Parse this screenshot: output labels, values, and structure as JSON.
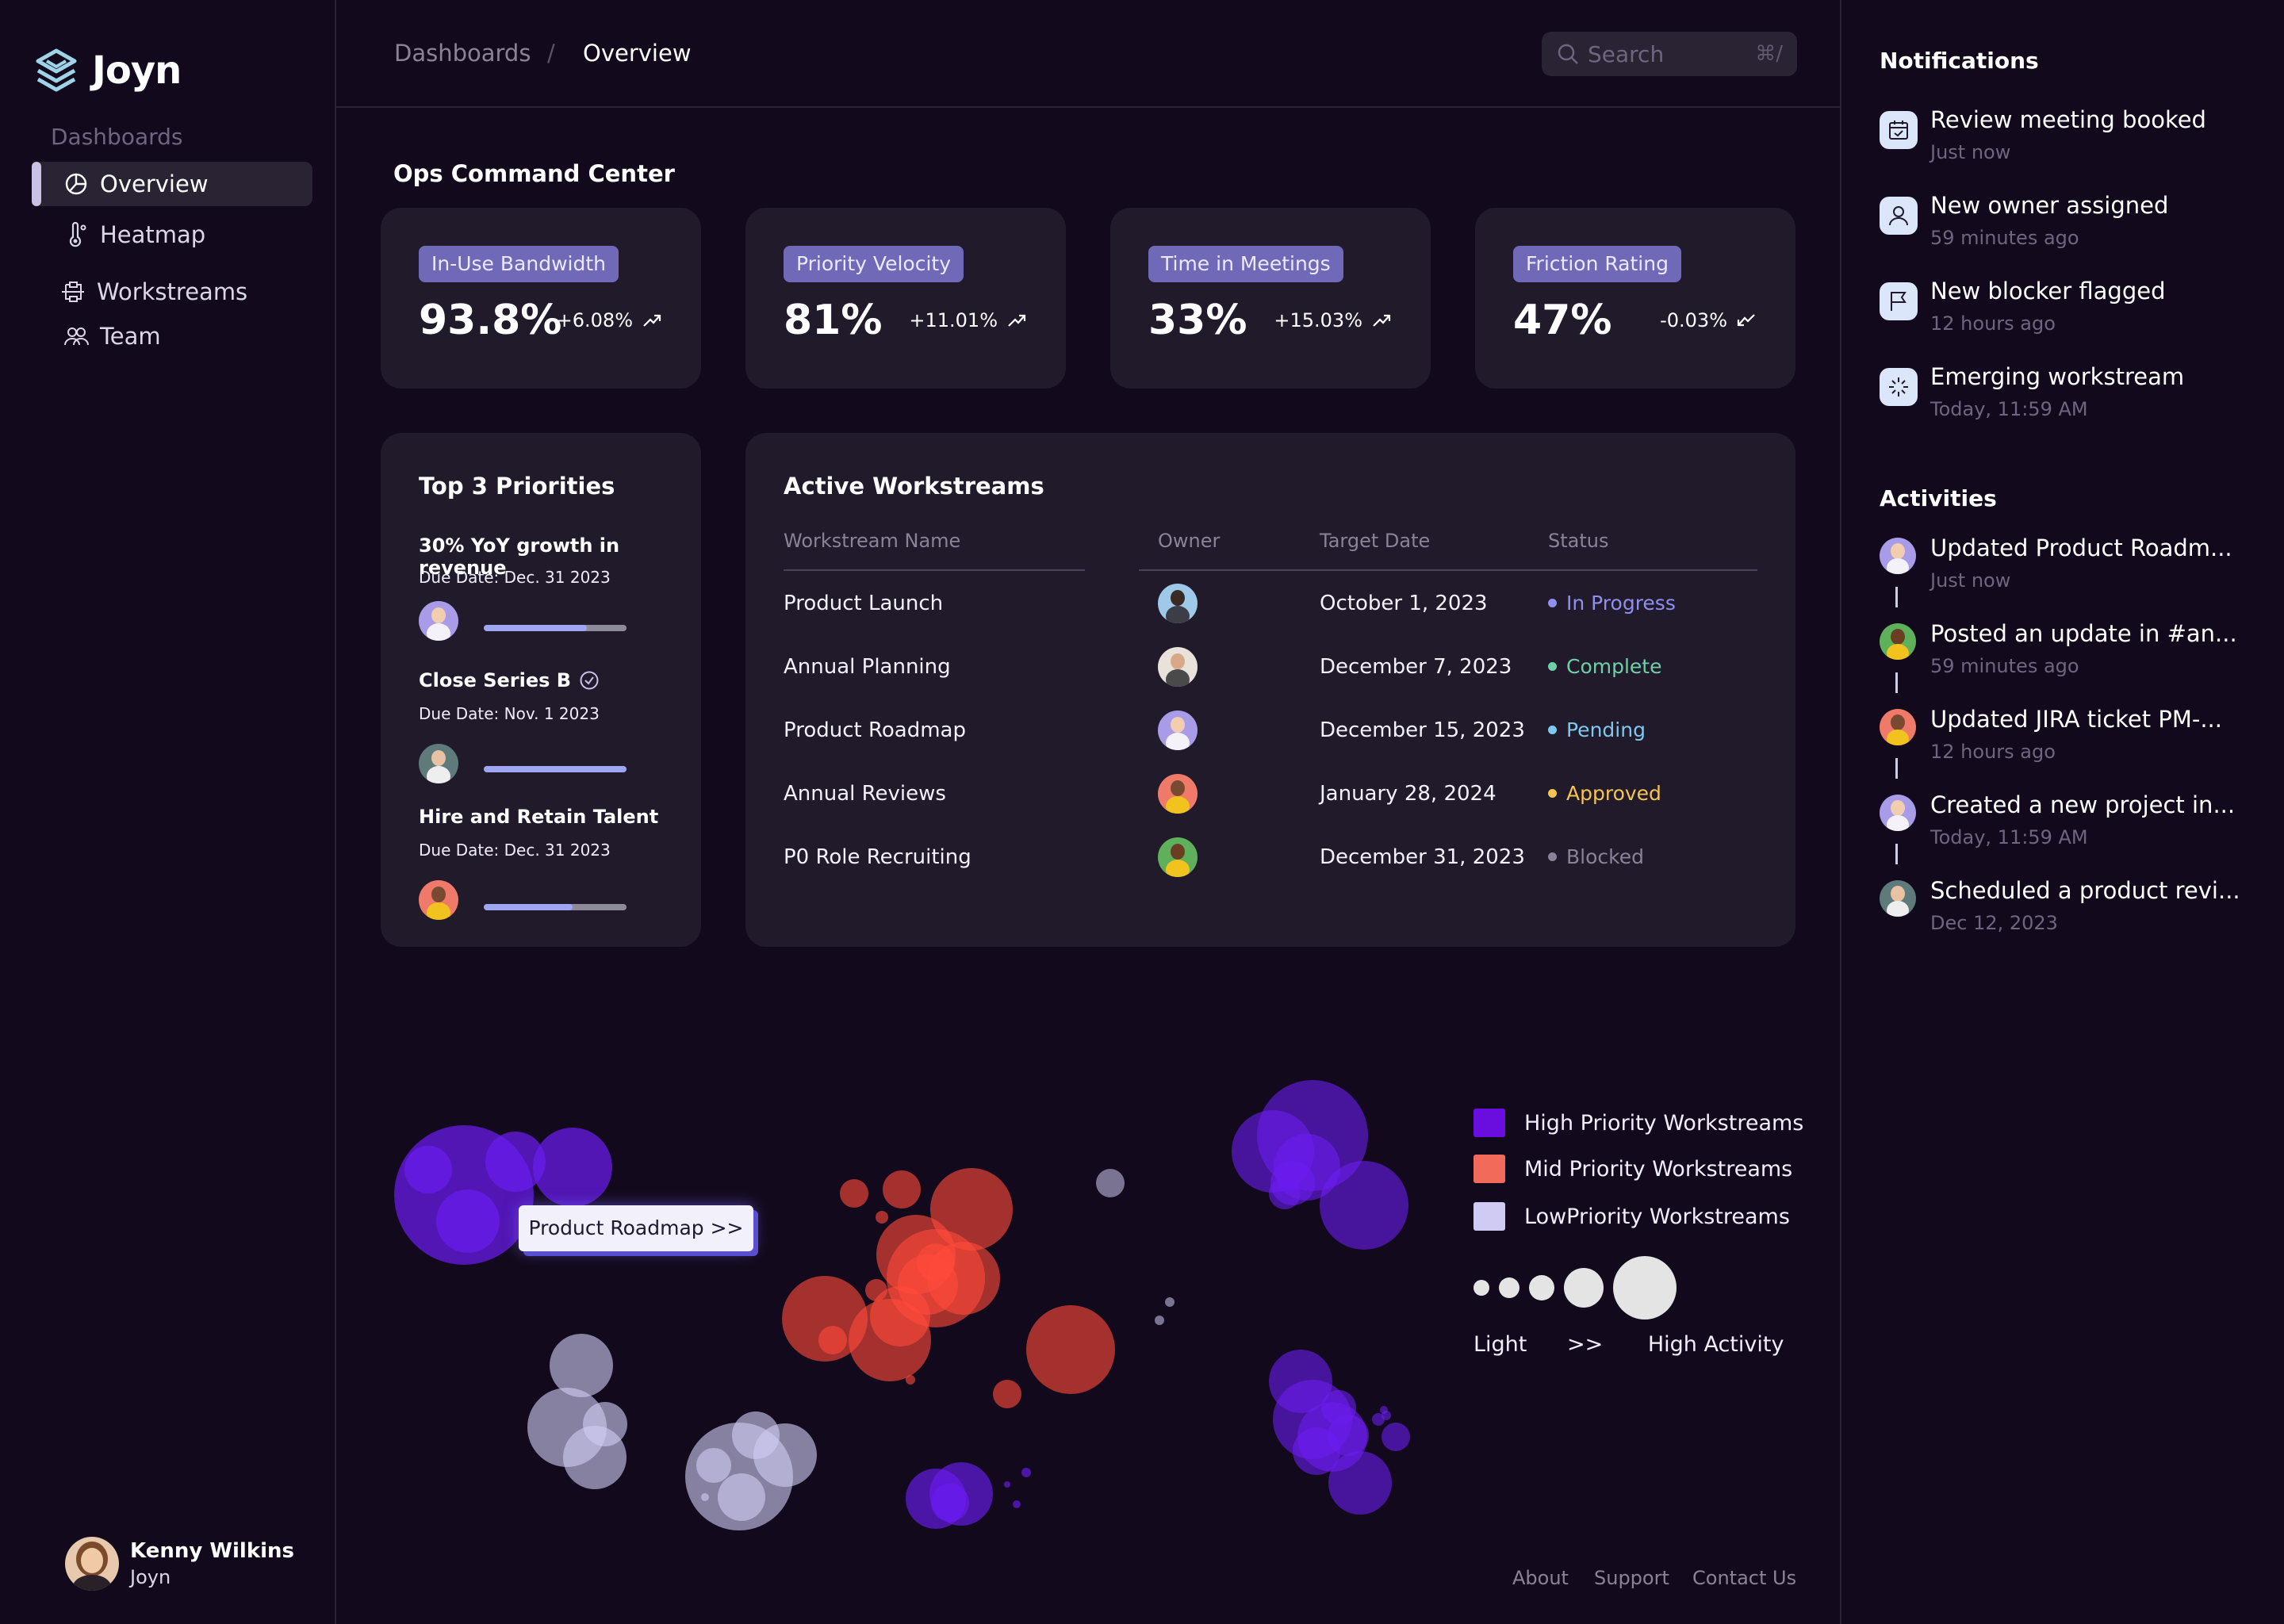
{
  "app": {
    "name": "Joyn"
  },
  "sidebar": {
    "section_label": "Dashboards",
    "items": [
      {
        "label": "Overview",
        "icon": "pie-chart-icon",
        "active": true
      },
      {
        "label": "Heatmap",
        "icon": "thermometer-icon",
        "active": false
      },
      {
        "label": "Workstreams",
        "icon": "workflow-icon",
        "active": false
      },
      {
        "label": "Team",
        "icon": "team-icon",
        "active": false
      }
    ],
    "user": {
      "name": "Kenny Wilkins",
      "org": "Joyn"
    }
  },
  "header": {
    "breadcrumb": [
      "Dashboards",
      "/",
      "Overview"
    ],
    "search": {
      "placeholder": "Search",
      "shortcut": "⌘/"
    }
  },
  "main": {
    "title": "Ops Command Center",
    "kpis": [
      {
        "label": "In-Use Bandwidth",
        "value": "93.8%",
        "change": "+6.08%",
        "trend": "up"
      },
      {
        "label": "Priority Velocity",
        "value": "81%",
        "change": "+11.01%",
        "trend": "up"
      },
      {
        "label": "Time in Meetings",
        "value": "33%",
        "change": "+15.03%",
        "trend": "up"
      },
      {
        "label": "Friction Rating",
        "value": "47%",
        "change": "-0.03%",
        "trend": "down"
      }
    ],
    "priorities": {
      "title": "Top 3 Priorities",
      "items": [
        {
          "name": "30% YoY growth in revenue",
          "due": "Due Date: Dec. 31 2023",
          "progress": 0.72,
          "completed": false
        },
        {
          "name": "Close Series B",
          "due": "Due Date: Nov. 1 2023",
          "progress": 1.0,
          "completed": true
        },
        {
          "name": "Hire and Retain Talent",
          "due": "Due Date: Dec. 31 2023",
          "progress": 0.62,
          "completed": false
        }
      ]
    },
    "workstreams": {
      "title": "Active Workstreams",
      "columns": [
        "Workstream Name",
        "Owner",
        "Target Date",
        "Status"
      ],
      "rows": [
        {
          "name": "Product Launch",
          "date": "October 1, 2023",
          "status": "In Progress",
          "status_color": "#8f8ff0"
        },
        {
          "name": "Annual Planning",
          "date": "December 7, 2023",
          "status": "Complete",
          "status_color": "#6fd0a8"
        },
        {
          "name": "Product Roadmap",
          "date": "December 15, 2023",
          "status": "Pending",
          "status_color": "#7fc8f0"
        },
        {
          "name": "Annual Reviews",
          "date": "January 28, 2024",
          "status": "Approved",
          "status_color": "#f5c451"
        },
        {
          "name": "P0 Role Recruiting",
          "date": "December 31, 2023",
          "status": "Blocked",
          "status_color": "#8a8398"
        }
      ]
    },
    "bubble_chart": {
      "tooltip": "Product Roadmap >>",
      "legend": [
        {
          "label": "High Priority Workstreams",
          "color": "#6a0ee0"
        },
        {
          "label": "Mid Priority Workstreams",
          "color": "#f26a5a"
        },
        {
          "label": "LowPriority Workstreams",
          "color": "#cfcbf2"
        }
      ],
      "scale": {
        "low": "Light",
        "mid": ">>",
        "high": "High Activity"
      }
    },
    "footer": [
      "About",
      "Support",
      "Contact Us"
    ]
  },
  "notifications": {
    "title": "Notifications",
    "items": [
      {
        "title": "Review meeting booked",
        "time": "Just now",
        "icon": "calendar-check-icon"
      },
      {
        "title": "New owner assigned",
        "time": "59 minutes ago",
        "icon": "user-icon"
      },
      {
        "title": "New blocker flagged",
        "time": "12 hours ago",
        "icon": "flag-icon"
      },
      {
        "title": "Emerging workstream",
        "time": "Today, 11:59 AM",
        "icon": "sparkle-icon"
      }
    ]
  },
  "activities": {
    "title": "Activities",
    "items": [
      {
        "title": "Updated Product Roadm...",
        "time": "Just now"
      },
      {
        "title": "Posted an update in #an...",
        "time": "59 minutes ago"
      },
      {
        "title": "Updated JIRA ticket PM-...",
        "time": "12 hours ago"
      },
      {
        "title": "Created a new project in...",
        "time": "Today, 11:59 AM"
      },
      {
        "title": "Scheduled a product revi...",
        "time": "Dec 12, 2023"
      }
    ]
  }
}
